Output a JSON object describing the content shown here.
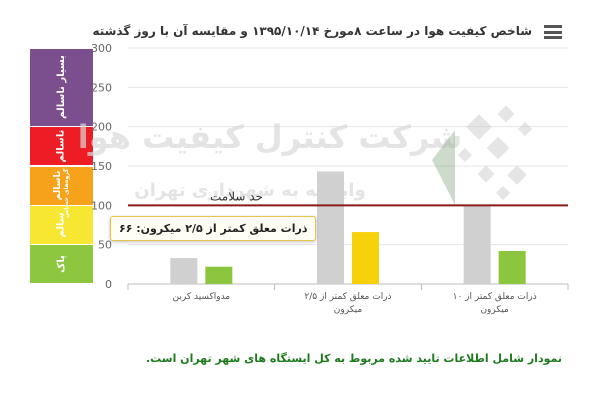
{
  "chart_data": {
    "type": "bar",
    "title": "شاخص کیفیت هوا در ساعت ۸مورخ ۱۳۹۵/۱۰/۱۴ و مقایسه آن با روز گذشته",
    "categories": [
      "مدواکسید کربن",
      "ذرات معلق کمتر از ۲/۵ میکرون",
      "ذرات معلق کمتر از ۱۰ میکرون"
    ],
    "series": [
      {
        "color": "#d0d0d0",
        "values": [
          33,
          143,
          100
        ]
      },
      {
        "color": "#f0c419",
        "values": [
          22,
          66,
          42
        ],
        "bar_colors": [
          "#8cc63f",
          "#f7d10a",
          "#8cc63f"
        ]
      }
    ],
    "ylim": [
      0,
      300
    ],
    "yticks": [
      0,
      50,
      100,
      150,
      200,
      250,
      300
    ],
    "grid": true,
    "threshold": {
      "value": 100,
      "label": "حد سلامت",
      "color": "#8b1a1a"
    },
    "tooltip": "ذرات معلق کمتر از ۲/۵ میکرون: ۶۶",
    "watermark": {
      "line1": "شرکت کنترل کیفیت هوا",
      "line2": "وابسته به شهرداری تهران"
    }
  },
  "aqi_bands": [
    {
      "label": "پاک",
      "from": 0,
      "to": 50,
      "color": "#8dc63f"
    },
    {
      "label": "سالم",
      "from": 50,
      "to": 100,
      "color": "#f7e632"
    },
    {
      "label": "ناسالم",
      "sub": "برای گروه‌های حساس",
      "from": 100,
      "to": 150,
      "color": "#f7a21b"
    },
    {
      "label": "ناسالم",
      "from": 150,
      "to": 200,
      "color": "#ee1c24"
    },
    {
      "label": "بسیار ناسالم",
      "from": 200,
      "to": 300,
      "color": "#7b4f8e"
    }
  ],
  "menu_icon": "hamburger-menu-icon",
  "footnote": "نمودار شامل اطلاعات تایید شده مربوط به کل ایستگاه های شهر تهران است."
}
